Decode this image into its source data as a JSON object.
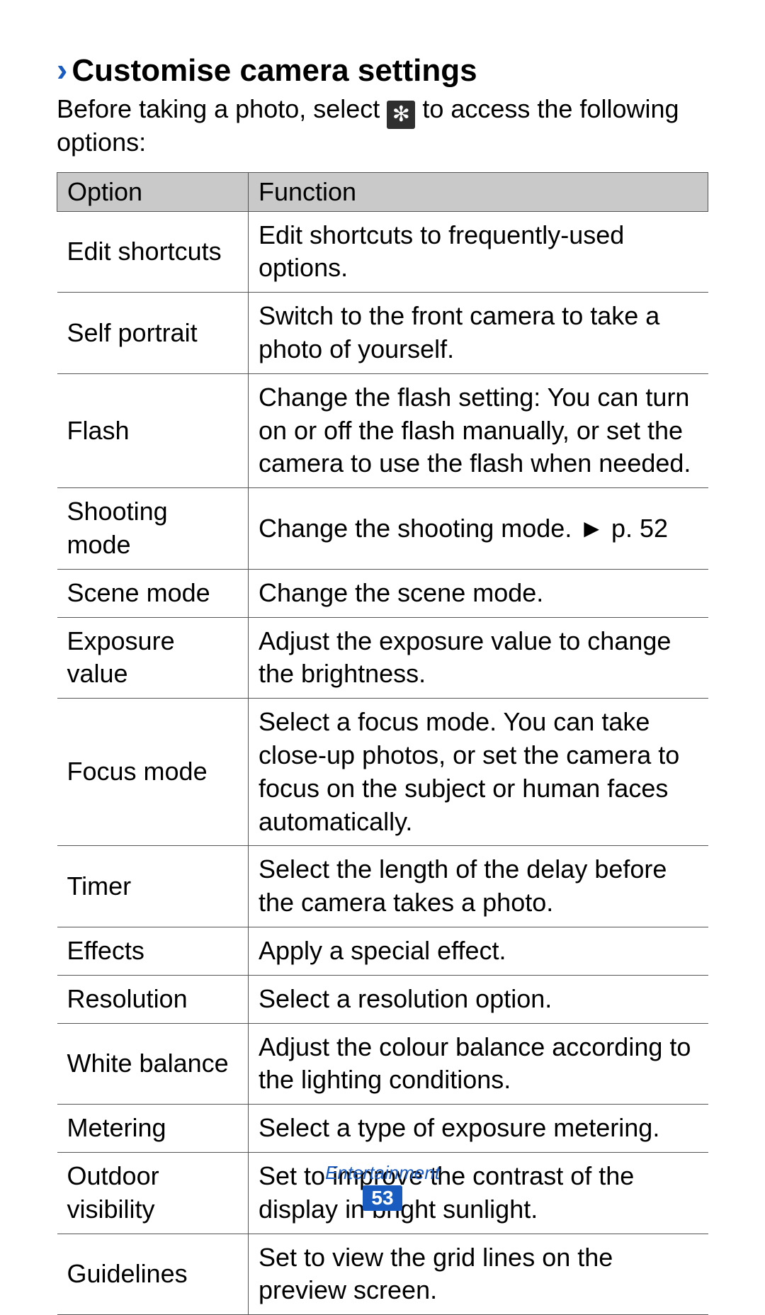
{
  "heading": {
    "chevron": "›",
    "text": "Customise camera settings"
  },
  "intro": {
    "before": "Before taking a photo, select ",
    "gearGlyph": "✻",
    "after": " to access the following options:"
  },
  "table": {
    "headers": {
      "option": "Option",
      "function": "Function"
    },
    "rows": [
      {
        "option": "Edit shortcuts",
        "function": "Edit shortcuts to frequently-used options."
      },
      {
        "option": "Self portrait",
        "function": "Switch to the front camera to take a photo of yourself."
      },
      {
        "option": "Flash",
        "function": "Change the flash setting: You can turn on or off the flash manually, or set the camera to use the flash when needed."
      },
      {
        "option": "Shooting mode",
        "function": "Change the shooting mode. ► p. 52"
      },
      {
        "option": "Scene mode",
        "function": "Change the scene mode."
      },
      {
        "option": "Exposure value",
        "function": "Adjust the exposure value to change the brightness."
      },
      {
        "option": "Focus mode",
        "function": "Select a focus mode. You can take close-up photos, or set the camera to focus on the subject or human faces automatically."
      },
      {
        "option": "Timer",
        "function": "Select the length of the delay before the camera takes a photo."
      },
      {
        "option": "Effects",
        "function": "Apply a special effect."
      },
      {
        "option": "Resolution",
        "function": "Select a resolution option."
      },
      {
        "option": "White balance",
        "function": "Adjust the colour balance according to the lighting conditions."
      },
      {
        "option": "Metering",
        "function": "Select a type of exposure metering."
      },
      {
        "option": "Outdoor visibility",
        "function": "Set to improve the contrast of the display in bright sunlight."
      },
      {
        "option": "Guidelines",
        "function": "Set to view the grid lines on the preview screen."
      }
    ]
  },
  "footer": {
    "section": "Entertainment",
    "page": "53"
  },
  "style": {
    "accent": "#1a5bbf",
    "headerBg": "#c9c9c9",
    "border": "#555555",
    "text": "#000000",
    "bodyFontSize": 36,
    "headingFontSize": 44,
    "optColumnWidth": 270
  }
}
